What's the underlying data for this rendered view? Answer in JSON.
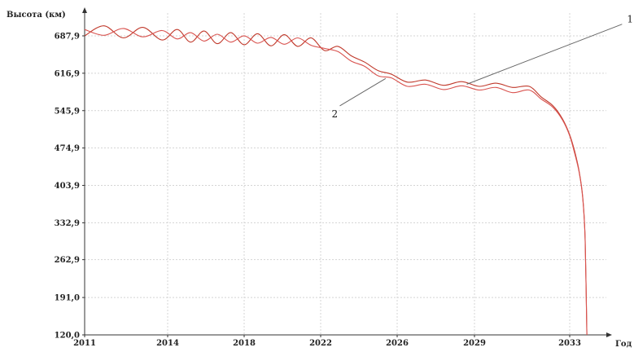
{
  "chart_data": {
    "type": "line",
    "ylabel": "Высота (км)",
    "xlabel": "Год",
    "x_ticks": [
      "2011",
      "2014",
      "2018",
      "2022",
      "2026",
      "2029",
      "2033"
    ],
    "y_ticks": [
      "120,0",
      "191,0",
      "262,9",
      "332,9",
      "403,9",
      "474,9",
      "545,9",
      "616,9",
      "687,9"
    ],
    "xlim": [
      2011,
      2036
    ],
    "ylim": [
      120,
      740
    ],
    "grid": true,
    "series_colors": [
      "#c0392b",
      "#d9534f"
    ],
    "series": [
      {
        "name": "1",
        "x": [
          2011.0,
          2011.7,
          2012.4,
          2013.1,
          2013.8,
          2014.5,
          2015.2,
          2015.9,
          2016.6,
          2017.3,
          2018.0,
          2018.7,
          2019.4,
          2020.1,
          2020.8,
          2021.5,
          2022.2,
          2022.9,
          2023.6,
          2024.3,
          2025.0,
          2025.7,
          2026.4,
          2027.1,
          2027.8,
          2028.5,
          2029.2,
          2029.9,
          2030.6,
          2031.3,
          2031.8,
          2032.3,
          2032.7,
          2033.0,
          2033.2,
          2033.4,
          2033.55,
          2033.65,
          2033.72
        ],
        "y": [
          688,
          707,
          684,
          704,
          680,
          700,
          676,
          697,
          673,
          694,
          671,
          692,
          669,
          690,
          668,
          684,
          660,
          668,
          650,
          638,
          622,
          615,
          600,
          604,
          594,
          601,
          592,
          598,
          590,
          592,
          572,
          555,
          530,
          500,
          470,
          430,
          380,
          300,
          120
        ]
      },
      {
        "name": "2",
        "x": [
          2011.0,
          2011.7,
          2012.4,
          2013.1,
          2013.8,
          2014.5,
          2015.2,
          2015.9,
          2016.6,
          2017.3,
          2018.0,
          2018.7,
          2019.4,
          2020.1,
          2020.8,
          2021.5,
          2022.2,
          2022.9,
          2023.6,
          2024.3,
          2025.0,
          2025.7,
          2026.4,
          2027.1,
          2027.8,
          2028.5,
          2029.2,
          2029.9,
          2030.6,
          2031.3,
          2031.8,
          2032.3,
          2032.7,
          2033.0,
          2033.2,
          2033.4,
          2033.55,
          2033.65,
          2033.72
        ],
        "y": [
          700,
          689,
          702,
          686,
          698,
          682,
          694,
          678,
          691,
          676,
          688,
          674,
          685,
          672,
          684,
          670,
          664,
          658,
          640,
          630,
          612,
          608,
          592,
          596,
          586,
          593,
          585,
          590,
          580,
          585,
          568,
          552,
          528,
          498,
          466,
          428,
          378,
          298,
          120
        ]
      }
    ],
    "annotations": [
      {
        "text": "1",
        "x": 2035.2,
        "y": 710,
        "target_x": 2028.7,
        "target_y": 596
      },
      {
        "text": "2",
        "x": 2023.0,
        "y": 555,
        "target_x": 2025.4,
        "target_y": 607
      }
    ]
  }
}
